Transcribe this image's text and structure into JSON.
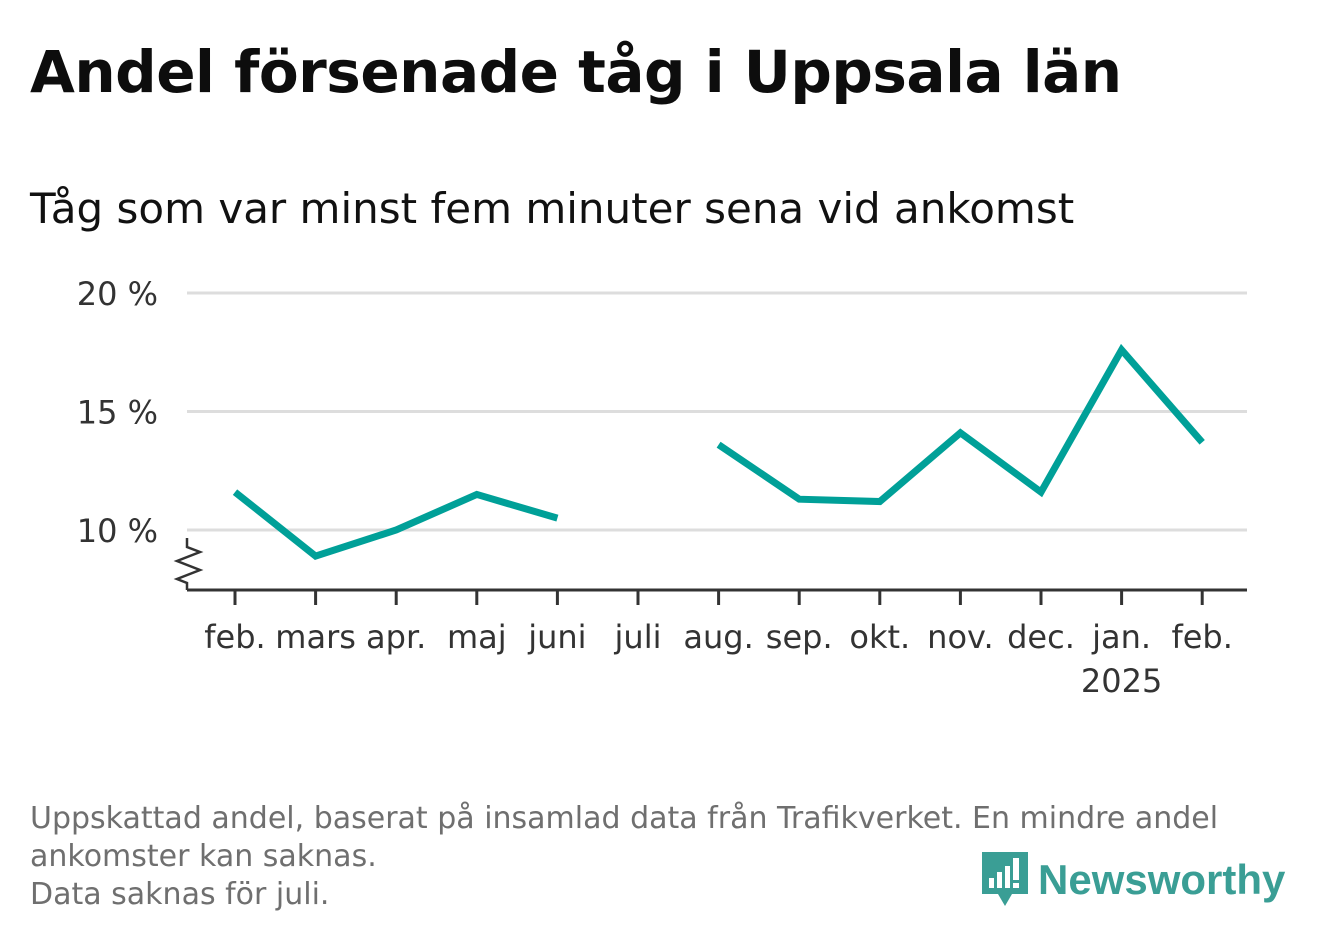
{
  "header": {
    "title": "Andel försenade tåg i Uppsala län",
    "subtitle": "Tåg som var minst fem minuter sena vid ankomst"
  },
  "footer": {
    "note_line1": "Uppskattad andel, baserat på insamlad data från Trafikverket. En mindre andel",
    "note_line2": "ankomster kan saknas.",
    "note_line3": "Data saknas för juli.",
    "logo_text": "Newsworthy"
  },
  "colors": {
    "line": "#00a098",
    "grid": "#dddddd",
    "axis": "#333333",
    "logo": "#3a9e95"
  },
  "chart_data": {
    "type": "line",
    "title": "Andel försenade tåg i Uppsala län",
    "subtitle": "Tåg som var minst fem minuter sena vid ankomst",
    "xlabel": "",
    "ylabel": "",
    "categories": [
      "feb.",
      "mars",
      "apr.",
      "maj",
      "juni",
      "juli",
      "aug.",
      "sep.",
      "okt.",
      "nov.",
      "dec.",
      "jan.",
      "feb."
    ],
    "year_labels": [
      {
        "category_index": 11,
        "label": "2025"
      }
    ],
    "series": [
      {
        "values": [
          11.6,
          8.9,
          10.0,
          11.5,
          10.5,
          null,
          13.6,
          11.3,
          11.2,
          14.1,
          11.6,
          17.6,
          13.7
        ]
      }
    ],
    "yticks": [
      10,
      15,
      20
    ],
    "ytick_labels": [
      "10 %",
      "15 %",
      "20 %"
    ],
    "ylim": [
      7.5,
      20
    ],
    "axis_break": true,
    "grid": true
  }
}
